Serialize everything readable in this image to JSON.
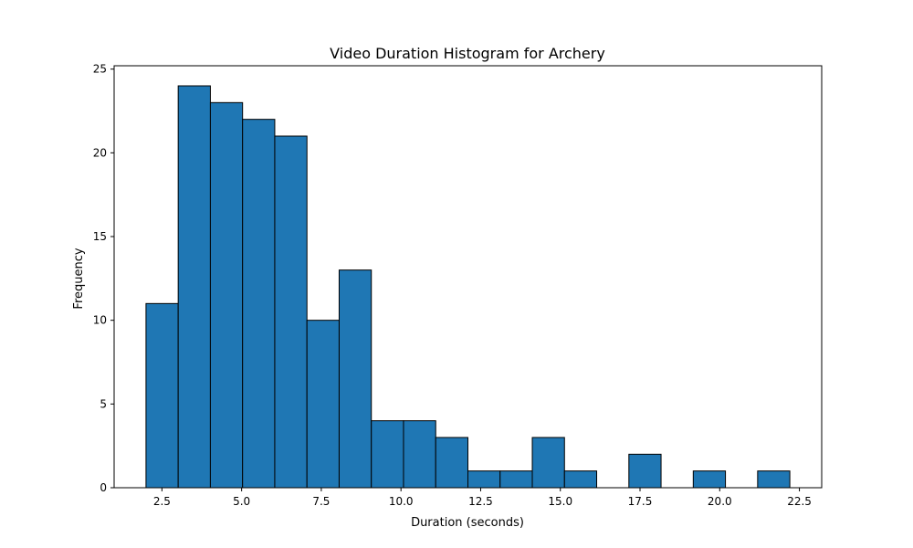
{
  "chart_data": {
    "type": "bar",
    "title": "Video Duration Histogram for Archery",
    "xlabel": "Duration (seconds)",
    "ylabel": "Frequency",
    "bin_edges": [
      2.0,
      3.01,
      4.02,
      5.03,
      6.04,
      7.05,
      8.06,
      9.07,
      10.08,
      11.09,
      12.1,
      13.11,
      14.12,
      15.13,
      16.14,
      17.15,
      18.16,
      19.17,
      20.18,
      21.19,
      22.2
    ],
    "values": [
      11,
      24,
      23,
      22,
      21,
      10,
      13,
      4,
      4,
      3,
      1,
      1,
      3,
      1,
      0,
      2,
      0,
      1,
      0,
      1
    ],
    "xlim": [
      1.0,
      23.2
    ],
    "ylim": [
      0,
      25.2
    ],
    "xticks": [
      2.5,
      5.0,
      7.5,
      10.0,
      12.5,
      15.0,
      17.5,
      20.0,
      22.5
    ],
    "xtick_labels": [
      "2.5",
      "5.0",
      "7.5",
      "10.0",
      "12.5",
      "15.0",
      "17.5",
      "20.0",
      "22.5"
    ],
    "yticks": [
      0,
      5,
      10,
      15,
      20,
      25
    ],
    "ytick_labels": [
      "0",
      "5",
      "10",
      "15",
      "20",
      "25"
    ],
    "grid": false,
    "colors": {
      "bar": "#1f77b4",
      "edge": "#000000",
      "axis": "#000000"
    }
  }
}
